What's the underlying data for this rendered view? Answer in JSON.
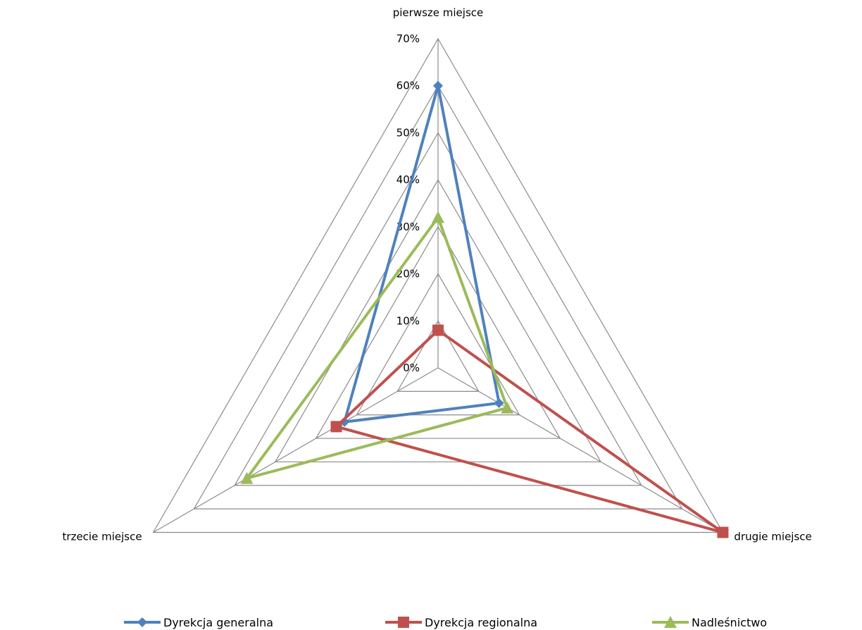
{
  "chart_data": {
    "type": "radar",
    "axes": [
      "pierwsze miejsce",
      "drugie miejsce",
      "trzecie miejsce"
    ],
    "tick_labels": [
      "0%",
      "10%",
      "20%",
      "30%",
      "40%",
      "50%",
      "60%",
      "70%"
    ],
    "r_range": [
      0,
      70
    ],
    "grid": true,
    "legend_position": "bottom",
    "series": [
      {
        "name": "Dyrekcja generalna",
        "values": [
          60,
          15,
          23
        ],
        "color": "#4F81BD",
        "marker": "diamond"
      },
      {
        "name": "Dyrekcja regionalna",
        "values": [
          8,
          70,
          25
        ],
        "color": "#C0504D",
        "marker": "square"
      },
      {
        "name": "Nadleśnictwo",
        "values": [
          32,
          17,
          47
        ],
        "color": "#9BBB59",
        "marker": "triangle"
      }
    ]
  }
}
